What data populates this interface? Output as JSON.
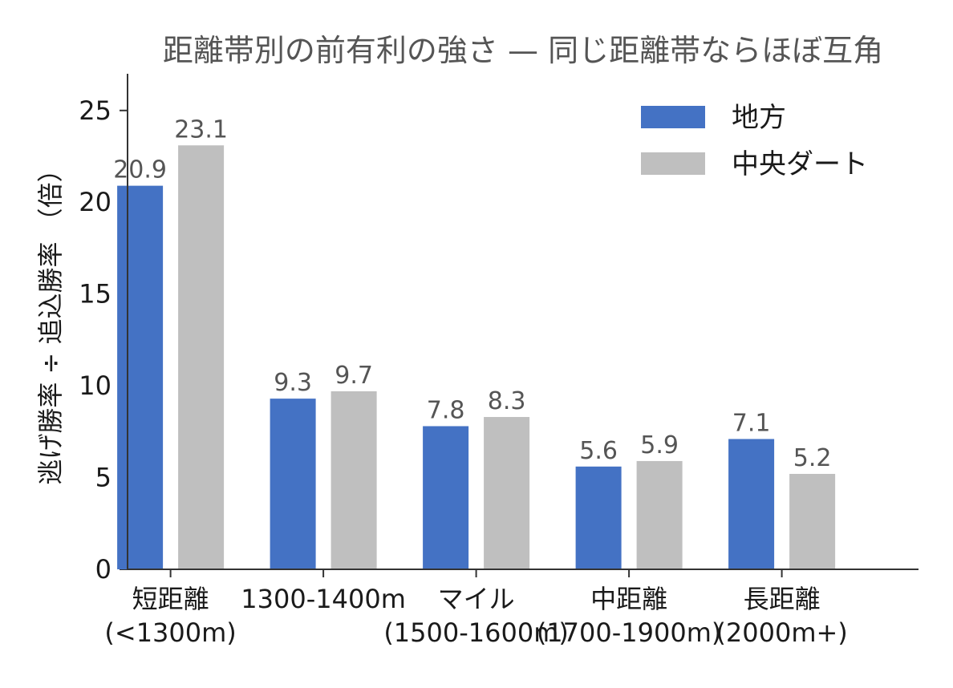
{
  "chart_data": {
    "type": "bar",
    "title": "距離帯別の前有利の強さ — 同じ距離帯ならほぼ互角",
    "xlabel": "",
    "ylabel": "逃げ勝率 ÷ 追込勝率 （倍）",
    "ylim": [
      0,
      27
    ],
    "yticks": [
      0,
      5,
      10,
      15,
      20,
      25
    ],
    "grid": false,
    "legend_position": "top-right",
    "categories": [
      [
        "短距離",
        "(<1300m)"
      ],
      [
        "1300-1400m"
      ],
      [
        "マイル",
        "(1500-1600m)"
      ],
      [
        "中距離",
        "(1700-1900m)"
      ],
      [
        "長距離",
        "(2000m+)"
      ]
    ],
    "series": [
      {
        "name": "地方",
        "color": "#4472c4",
        "values": [
          20.9,
          9.3,
          7.8,
          5.6,
          7.1
        ],
        "labels": [
          "20.9",
          "9.3",
          "7.8",
          "5.6",
          "7.1"
        ]
      },
      {
        "name": "中央ダート",
        "color": "#bfbfbf",
        "values": [
          23.1,
          9.7,
          8.3,
          5.9,
          5.2
        ],
        "labels": [
          "23.1",
          "9.7",
          "8.3",
          "5.9",
          "5.2"
        ]
      }
    ]
  }
}
